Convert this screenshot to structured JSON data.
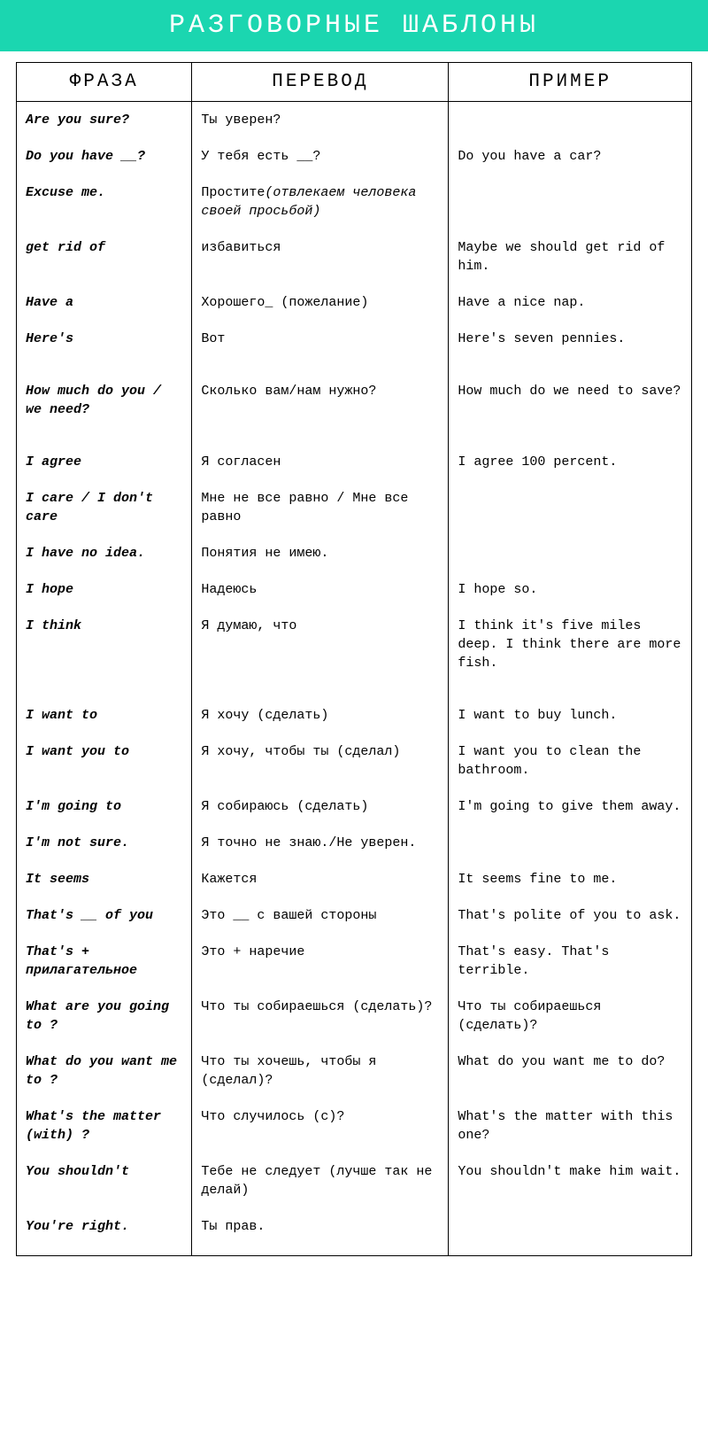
{
  "header": {
    "title": "РАЗГОВОРНЫЕ ШАБЛОНЫ",
    "bg_color": "#1bd6b0",
    "text_color": "#ffffff"
  },
  "table": {
    "columns": [
      "ФРАЗА",
      "ПЕРЕВОД",
      "ПРИМЕР"
    ],
    "col_widths": [
      "26%",
      "38%",
      "36%"
    ],
    "rows": [
      {
        "phrase": "Are you sure?",
        "translation": "Ты уверен?",
        "example": ""
      },
      {
        "phrase": "Do you have __?",
        "translation": "У тебя есть __?",
        "example": "Do you have a car?"
      },
      {
        "phrase": "Excuse me.",
        "translation": "Простите",
        "translation_note": "(отвлекаем человека своей просьбой)",
        "example": ""
      },
      {
        "phrase": "get rid of",
        "translation": "избавиться",
        "example": "Maybe we should get rid of him."
      },
      {
        "phrase": "Have a",
        "translation": "Хорошего_  (пожелание)",
        "example": "Have a nice nap."
      },
      {
        "phrase": "Here's",
        "translation": "Вот",
        "example": "Here's seven pennies."
      },
      {
        "phrase": "How much do you / we need?",
        "translation": "Сколько вам/нам нужно?",
        "example": "How much do we need to save?",
        "pad_top": true
      },
      {
        "phrase": "I agree",
        "translation": "Я согласен",
        "example": "I agree 100 percent.",
        "pad_top": true
      },
      {
        "phrase": "I care / I don't care",
        "translation": "Мне не все равно / Мне все равно",
        "example": ""
      },
      {
        "phrase": "I have no idea.",
        "translation": "Понятия не имею.",
        "example": ""
      },
      {
        "phrase": "I hope",
        "translation": "Надеюсь",
        "example": "I hope so."
      },
      {
        "phrase": "I think",
        "translation": "Я думаю, что",
        "example": "I think it's five miles deep. I think there are more fish."
      },
      {
        "phrase": "I want to",
        "translation": "Я хочу (сделать)",
        "example": "I want to buy lunch.",
        "pad_top": true
      },
      {
        "phrase": "I want you to",
        "translation": "Я хочу, чтобы ты (сделал)",
        "example": "I want you to clean the bathroom."
      },
      {
        "phrase": "I'm going to",
        "translation": "Я собираюсь (сделать)",
        "example": "I'm going to give them away."
      },
      {
        "phrase": "I'm not sure.",
        "translation": "Я точно не знаю./Не уверен.",
        "example": ""
      },
      {
        "phrase": "It seems",
        "translation": "Кажется",
        "example": "It seems fine to me."
      },
      {
        "phrase": "That's __ of you",
        "translation": "Это __ с вашей стороны",
        "example": "That's polite of you to ask."
      },
      {
        "phrase": "That's + прилагательное",
        "translation": "Это + наречие",
        "example": "That's easy.  That's terrible."
      },
      {
        "phrase": "What are you going to ?",
        "translation": "Что ты собираешься (сделать)?",
        "example": "Что ты собираешься (сделать)?"
      },
      {
        "phrase": "What do you want me to ?",
        "translation": "Что ты хочешь, чтобы я (сделал)?",
        "example": "What do you want me to do?"
      },
      {
        "phrase": "What's the matter (with) ?",
        "translation": "Что случилось (с)?",
        "example": "What's the matter with this one?"
      },
      {
        "phrase": "You shouldn't",
        "translation": "Тебе не следует (лучше так не делай)",
        "example": "You shouldn't make him wait."
      },
      {
        "phrase": "You're right.",
        "translation": "Ты прав.",
        "example": ""
      }
    ]
  }
}
